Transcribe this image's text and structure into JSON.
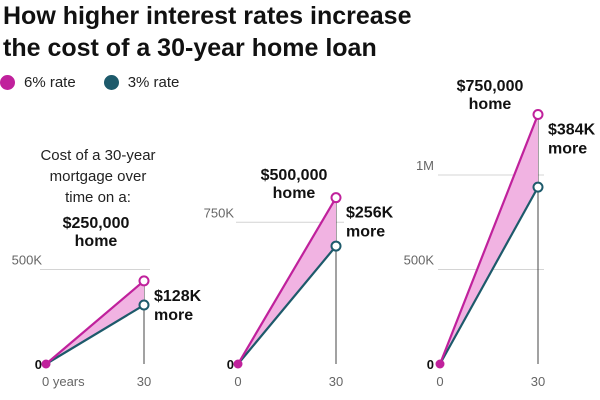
{
  "chart_title_line1": "How higher interest rates increase",
  "chart_title_line2": "the cost of a 30-year home loan",
  "legend": [
    {
      "label": "6% rate",
      "color": "#c0219c"
    },
    {
      "label": "3% rate",
      "color": "#1d5a6b"
    }
  ],
  "intro_lines": [
    "Cost of a 30-year",
    "mortgage over",
    "time on a:"
  ],
  "colors": {
    "fill": "#f1b3e2",
    "high": "#c0219c",
    "low": "#1d5a6b"
  },
  "chart_data": [
    {
      "type": "area",
      "home_label": [
        "$250,000",
        "home"
      ],
      "diff_label": [
        "$128K",
        "more"
      ],
      "x": [
        0,
        30
      ],
      "x_tick_labels": [
        "0 years",
        "30"
      ],
      "y_ticks": [
        0,
        500000
      ],
      "y_tick_labels": [
        "0",
        "500K"
      ],
      "series": [
        {
          "name": "6% rate",
          "values": [
            0,
            440000
          ]
        },
        {
          "name": "3% rate",
          "values": [
            0,
            312000
          ]
        }
      ]
    },
    {
      "type": "area",
      "home_label": [
        "$500,000",
        "home"
      ],
      "diff_label": [
        "$256K",
        "more"
      ],
      "x": [
        0,
        30
      ],
      "x_tick_labels": [
        "0",
        "30"
      ],
      "y_ticks": [
        0,
        750000
      ],
      "y_tick_labels": [
        "0",
        "750K"
      ],
      "series": [
        {
          "name": "6% rate",
          "values": [
            0,
            880000
          ]
        },
        {
          "name": "3% rate",
          "values": [
            0,
            624000
          ]
        }
      ]
    },
    {
      "type": "area",
      "home_label": [
        "$750,000",
        "home"
      ],
      "diff_label": [
        "$384K",
        "more"
      ],
      "x": [
        0,
        30
      ],
      "x_tick_labels": [
        "0",
        "30"
      ],
      "y_ticks": [
        0,
        500000,
        1000000
      ],
      "y_tick_labels": [
        "0",
        "500K",
        "1M"
      ],
      "series": [
        {
          "name": "6% rate",
          "values": [
            0,
            1320000
          ]
        },
        {
          "name": "3% rate",
          "values": [
            0,
            936000
          ]
        }
      ]
    }
  ]
}
